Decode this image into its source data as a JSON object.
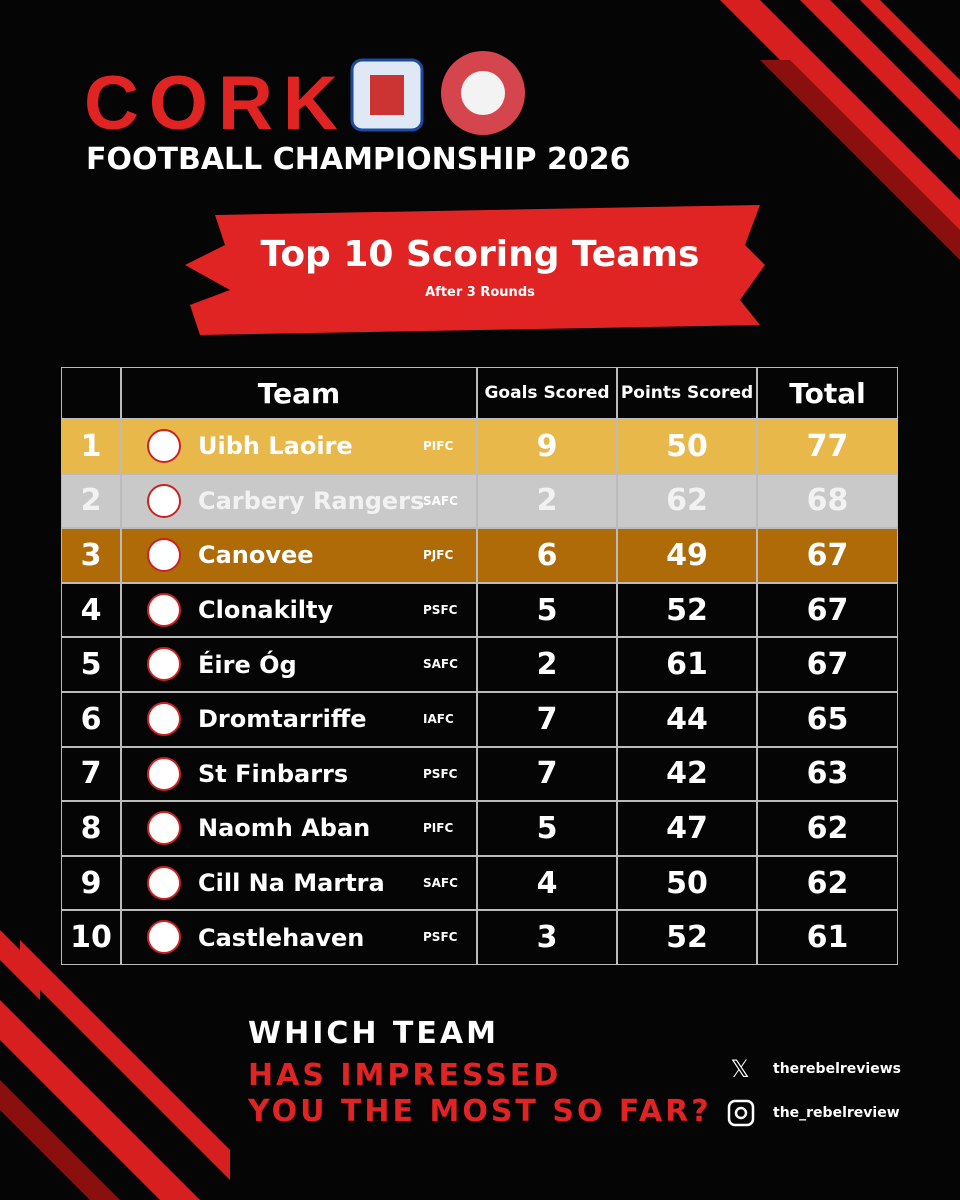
{
  "header": {
    "title": "CORK",
    "subtitle": "FOOTBALL CHAMPIONSHIP 2026"
  },
  "banner": {
    "title": "Top 10 Scoring Teams",
    "subtitle": "After 3 Rounds"
  },
  "table": {
    "columns": [
      "Team",
      "Goals Scored",
      "Points Scored",
      "Total"
    ],
    "rows": [
      [
        "1",
        "Uibh Laoire",
        "PIFC",
        "9",
        "50",
        "77"
      ],
      [
        "2",
        "Carbery Rangers",
        "SAFC",
        "2",
        "62",
        "68"
      ],
      [
        "3",
        "Canovee",
        "PJFC",
        "6",
        "49",
        "67"
      ],
      [
        "4",
        "Clonakilty",
        "PSFC",
        "5",
        "52",
        "67"
      ],
      [
        "5",
        "Éire Óg",
        "SAFC",
        "2",
        "61",
        "67"
      ],
      [
        "6",
        "Dromtarriffe",
        "IAFC",
        "7",
        "44",
        "65"
      ],
      [
        "7",
        "St Finbarrs",
        "PSFC",
        "7",
        "42",
        "63"
      ],
      [
        "8",
        "Naomh Aban",
        "PIFC",
        "5",
        "47",
        "62"
      ],
      [
        "9",
        "Cill Na Martra",
        "SAFC",
        "4",
        "50",
        "62"
      ],
      [
        "10",
        "Castlehaven",
        "PSFC",
        "3",
        "52",
        "61"
      ]
    ]
  },
  "footer": {
    "lines": [
      "WHICH TEAM",
      "HAS IMPRESSED",
      "YOU THE MOST SO FAR?"
    ],
    "socials": [
      "therebelreviews",
      "the_rebelreview"
    ]
  }
}
